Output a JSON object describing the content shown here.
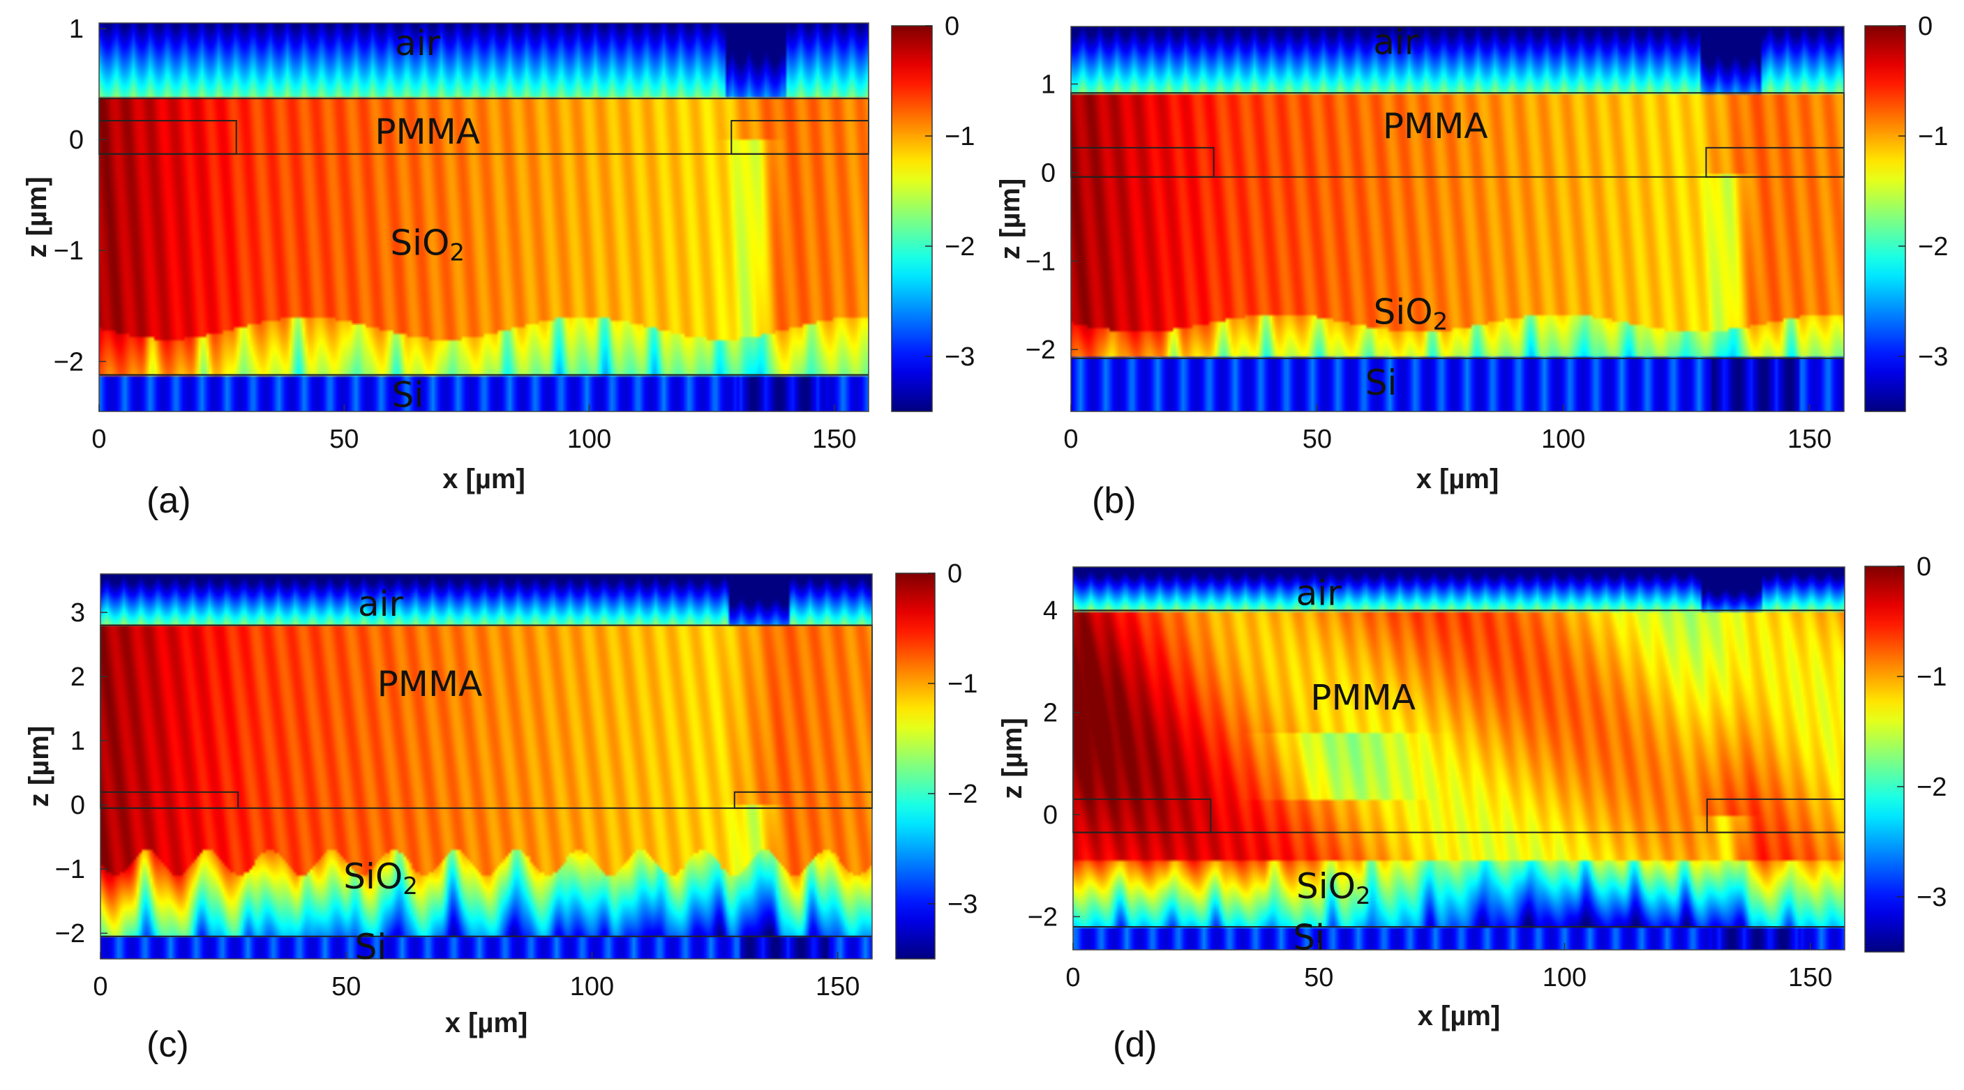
{
  "chart_data": [
    {
      "type": "heatmap",
      "panel_label": "(a)",
      "xlabel": "x [µm]",
      "ylabel": "z [µm]",
      "xlim": [
        0,
        157
      ],
      "ylim": [
        -2.45,
        1.05
      ],
      "xticks": [
        0,
        50,
        100,
        150
      ],
      "yticks": [
        -2,
        -1,
        0,
        1
      ],
      "colorbar": {
        "min": -3.5,
        "max": 0,
        "ticks": [
          0,
          -1,
          -2,
          -3
        ]
      },
      "layers": {
        "pmma_top": 0.37,
        "grating_top": 0.17,
        "sio2_top": -0.13,
        "si_top": -2.12,
        "pad_left_end": 28,
        "pad_right_start": 129
      },
      "regions": [
        {
          "text": "air",
          "x": 65,
          "z": 0.85
        },
        {
          "text": "PMMA",
          "x": 67,
          "z": 0.05
        },
        {
          "text": "SiO",
          "sub": "2",
          "x": 67,
          "z": -0.95
        },
        {
          "text": "Si",
          "x": 63,
          "z": -2.32
        }
      ]
    },
    {
      "type": "heatmap",
      "panel_label": "(b)",
      "xlabel": "x [µm]",
      "ylabel": "z [µm]",
      "xlim": [
        0,
        157
      ],
      "ylim": [
        -2.7,
        1.65
      ],
      "xticks": [
        0,
        50,
        100,
        150
      ],
      "yticks": [
        -2,
        -1,
        0,
        1
      ],
      "colorbar": {
        "min": -3.5,
        "max": 0,
        "ticks": [
          0,
          -1,
          -2,
          -3
        ]
      },
      "layers": {
        "pmma_top": 0.9,
        "grating_top": 0.28,
        "sio2_top": -0.05,
        "si_top": -2.1,
        "pad_left_end": 29,
        "pad_right_start": 129
      },
      "regions": [
        {
          "text": "air",
          "x": 66,
          "z": 1.45
        },
        {
          "text": "PMMA",
          "x": 74,
          "z": 0.5
        },
        {
          "text": "SiO",
          "sub": "2",
          "x": 69,
          "z": -1.6
        },
        {
          "text": "Si",
          "x": 63,
          "z": -2.4
        }
      ]
    },
    {
      "type": "heatmap",
      "panel_label": "(c)",
      "xlabel": "x [µm]",
      "ylabel": "z [µm]",
      "xlim": [
        0,
        157
      ],
      "ylim": [
        -2.4,
        3.6
      ],
      "xticks": [
        0,
        50,
        100,
        150
      ],
      "yticks": [
        -2,
        -1,
        0,
        1,
        2,
        3
      ],
      "colorbar": {
        "min": -3.5,
        "max": 0,
        "ticks": [
          0,
          -1,
          -2,
          -3
        ]
      },
      "layers": {
        "pmma_top": 2.8,
        "grating_top": 0.2,
        "sio2_top": -0.05,
        "si_top": -2.05,
        "pad_left_end": 28,
        "pad_right_start": 129
      },
      "regions": [
        {
          "text": "air",
          "x": 57,
          "z": 3.1
        },
        {
          "text": "PMMA",
          "x": 67,
          "z": 1.85
        },
        {
          "text": "SiO",
          "sub": "2",
          "x": 57,
          "z": -1.15
        },
        {
          "text": "Si",
          "x": 55,
          "z": -2.25
        }
      ]
    },
    {
      "type": "heatmap",
      "panel_label": "(d)",
      "xlabel": "x [µm]",
      "ylabel": "z [µm]",
      "xlim": [
        0,
        157
      ],
      "ylim": [
        -2.65,
        4.85
      ],
      "xticks": [
        0,
        50,
        100,
        150
      ],
      "yticks": [
        -2,
        0,
        2,
        4
      ],
      "colorbar": {
        "min": -3.5,
        "max": 0,
        "ticks": [
          0,
          -1,
          -2,
          -3
        ]
      },
      "layers": {
        "pmma_top": 4.0,
        "grating_top": 0.3,
        "sio2_top": -0.35,
        "si_top": -2.2,
        "pad_left_end": 28,
        "pad_right_start": 129
      },
      "regions": [
        {
          "text": "air",
          "x": 50,
          "z": 4.3
        },
        {
          "text": "PMMA",
          "x": 59,
          "z": 2.25
        },
        {
          "text": "SiO",
          "sub": "2",
          "x": 53,
          "z": -1.45
        },
        {
          "text": "Si",
          "x": 48,
          "z": -2.45
        }
      ]
    }
  ]
}
